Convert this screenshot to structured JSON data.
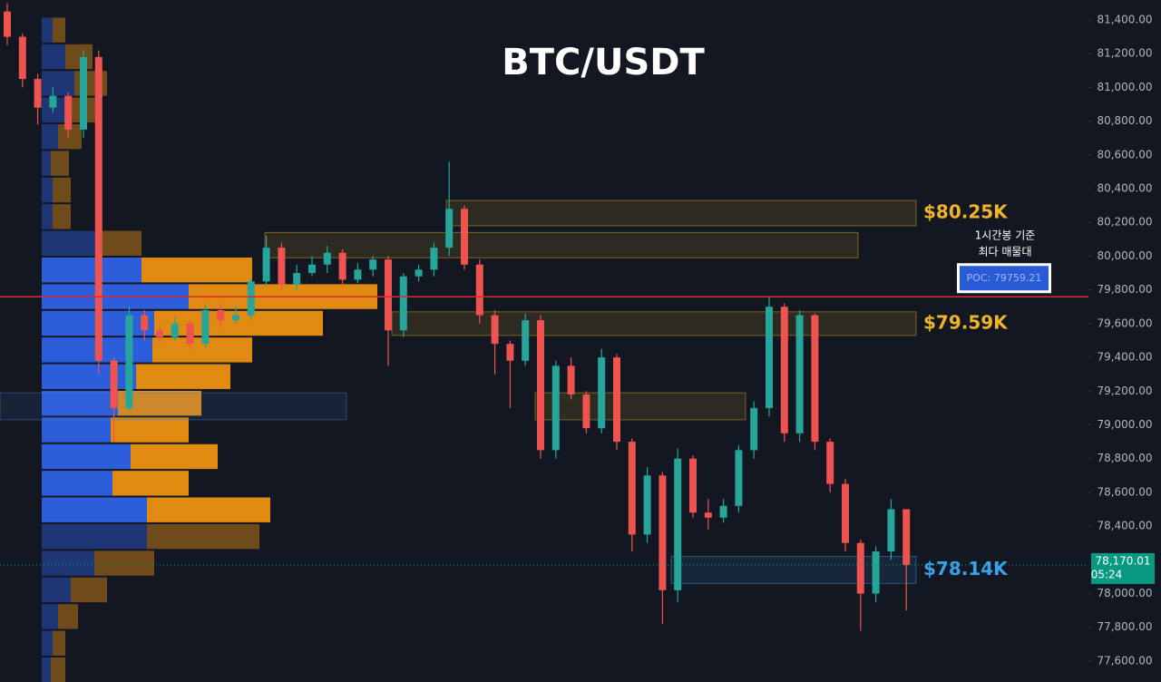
{
  "chart_data": {
    "type": "candlestick",
    "title": "BTC/USDT",
    "ylim": [
      77476,
      81518
    ],
    "yticks": [
      {
        "value": 81400,
        "label": "81,400.00"
      },
      {
        "value": 81200,
        "label": "81,200.00"
      },
      {
        "value": 81000,
        "label": "81,000.00"
      },
      {
        "value": 80800,
        "label": "80,800.00"
      },
      {
        "value": 80600,
        "label": "80,600.00"
      },
      {
        "value": 80400,
        "label": "80,400.00"
      },
      {
        "value": 80200,
        "label": "80,200.00"
      },
      {
        "value": 80000,
        "label": "80,000.00"
      },
      {
        "value": 79800,
        "label": "79,800.00"
      },
      {
        "value": 79600,
        "label": "79,600.00"
      },
      {
        "value": 79400,
        "label": "79,400.00"
      },
      {
        "value": 79200,
        "label": "79,200.00"
      },
      {
        "value": 79000,
        "label": "79,000.00"
      },
      {
        "value": 78800,
        "label": "78,800.00"
      },
      {
        "value": 78600,
        "label": "78,600.00"
      },
      {
        "value": 78400,
        "label": "78,400.00"
      },
      {
        "value": 78000,
        "label": "78,000.00"
      },
      {
        "value": 77800,
        "label": "77,800.00"
      },
      {
        "value": 77600,
        "label": "77,600.00"
      }
    ],
    "up_color": "#26a69a",
    "down_color": "#ef5350",
    "open": [
      81450,
      81300,
      81050,
      80880,
      80950,
      80750,
      81180,
      79380,
      79100,
      79650,
      79560,
      79520,
      79600,
      79480,
      79680,
      79620,
      79650,
      79850,
      80050,
      79830,
      79900,
      79950,
      80020,
      79860,
      79920,
      79980,
      79560,
      79880,
      79920,
      80050,
      80280,
      79950,
      79650,
      79480,
      79380,
      79620,
      78850,
      79350,
      79180,
      78980,
      79400,
      78900,
      78350,
      78700,
      78020,
      78800,
      78480,
      78450,
      78520,
      78850,
      79100,
      79700,
      78950,
      79650,
      78900,
      78650,
      78300,
      78000,
      78250,
      78500
    ],
    "high": [
      81500,
      81320,
      81080,
      81000,
      80970,
      81220,
      81220,
      79400,
      79700,
      79680,
      79600,
      79640,
      79620,
      79720,
      79720,
      79700,
      79870,
      80120,
      80080,
      79950,
      80000,
      80060,
      80040,
      79960,
      80000,
      80000,
      79900,
      79950,
      80080,
      80560,
      80300,
      79980,
      79680,
      79500,
      79660,
      79650,
      79380,
      79400,
      79200,
      79450,
      79420,
      78920,
      78750,
      78720,
      78860,
      78820,
      78560,
      78560,
      78880,
      79140,
      79760,
      79720,
      79680,
      79660,
      78920,
      78680,
      78320,
      78280,
      78560,
      78500
    ],
    "low": [
      81250,
      81000,
      80780,
      80850,
      80700,
      80700,
      79300,
      78900,
      79080,
      79500,
      79480,
      79500,
      79450,
      79460,
      79580,
      79600,
      79620,
      79820,
      79800,
      79800,
      79880,
      79900,
      79820,
      79840,
      79880,
      79350,
      79520,
      79850,
      79880,
      80000,
      79920,
      79600,
      79300,
      79100,
      79350,
      78800,
      78800,
      79150,
      78950,
      78950,
      78850,
      78250,
      78300,
      77820,
      77950,
      78450,
      78380,
      78420,
      78480,
      78800,
      79050,
      78900,
      78900,
      78850,
      78600,
      78250,
      77780,
      77950,
      78200,
      77900
    ],
    "close": [
      81300,
      81050,
      80880,
      80950,
      80750,
      81180,
      79380,
      79100,
      79650,
      79560,
      79520,
      79600,
      79480,
      79680,
      79620,
      79650,
      79850,
      80050,
      79830,
      79900,
      79950,
      80020,
      79860,
      79920,
      79980,
      79560,
      79880,
      79920,
      80050,
      80280,
      79950,
      79650,
      79480,
      79380,
      79620,
      78850,
      79350,
      79180,
      78980,
      79400,
      78900,
      78350,
      78700,
      78020,
      78800,
      78480,
      78450,
      78520,
      78850,
      79100,
      79700,
      78950,
      79650,
      78900,
      78650,
      78300,
      78000,
      78250,
      78500,
      78170
    ],
    "volume_profile": {
      "prices": [
        81340,
        81182,
        81024,
        80866,
        80708,
        80550,
        80392,
        80234,
        80076,
        79918,
        79760,
        79602,
        79444,
        79286,
        79128,
        78970,
        78812,
        78654,
        78496,
        78338,
        78180,
        78022,
        77864,
        77706,
        77548
      ],
      "buy": [
        12,
        26,
        36,
        30,
        18,
        10,
        12,
        12,
        64,
        110,
        162,
        124,
        122,
        104,
        84,
        76,
        98,
        78,
        116,
        116,
        58,
        32,
        18,
        12,
        10
      ],
      "sell": [
        14,
        30,
        36,
        36,
        26,
        20,
        20,
        20,
        46,
        122,
        208,
        186,
        110,
        104,
        92,
        86,
        96,
        84,
        136,
        124,
        66,
        40,
        22,
        14,
        16
      ],
      "value_area": [
        78400,
        80000
      ],
      "buy_color": "#2c5ddb",
      "sell_color": "#e08a12"
    },
    "zones": [
      {
        "low": 80180,
        "high": 80330,
        "label": "$80.25K",
        "color": "#f0b429"
      },
      {
        "low": 79990,
        "high": 80140,
        "color": "#f0b429"
      },
      {
        "low": 79530,
        "high": 79670,
        "label": "$79.59K",
        "color": "#f0b429"
      },
      {
        "low": 79030,
        "high": 79190,
        "color": "#f0b429"
      },
      {
        "low": 79030,
        "high": 79190,
        "color": "#4a7fd6"
      },
      {
        "low": 78060,
        "high": 78220,
        "label": "$78.14K",
        "color": "#3aa0e8"
      }
    ],
    "poc": {
      "value": 79759.21,
      "label": "POC: 79759.21",
      "note": [
        "1시간봉 기준",
        "최다 매물대"
      ],
      "color": "#e0282e"
    },
    "last_price": {
      "value": 78170.01,
      "label": "78,170.01",
      "countdown": "05:24",
      "color": "#089981"
    }
  }
}
